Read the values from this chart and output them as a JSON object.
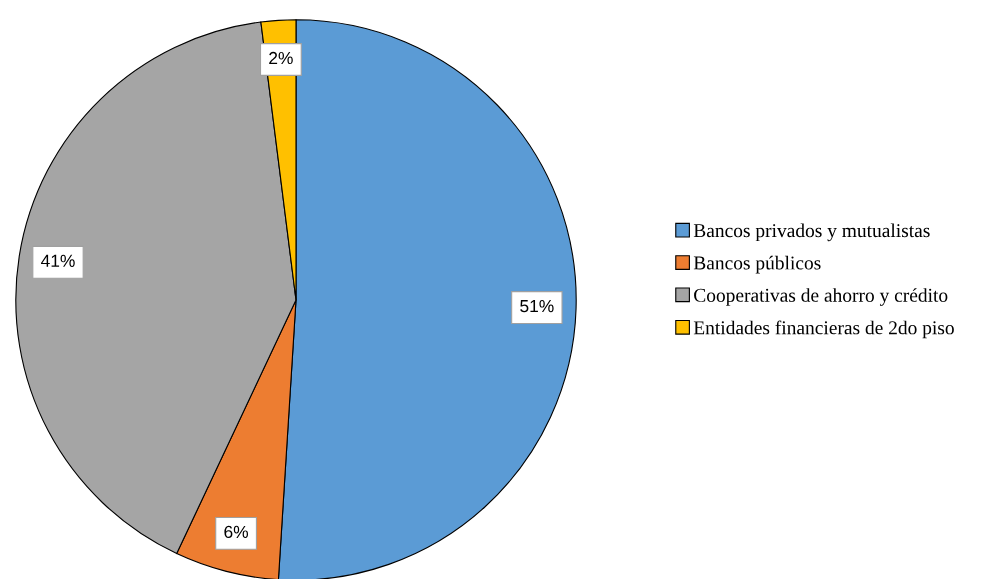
{
  "chart_data": {
    "type": "pie",
    "categories": [
      "Bancos privados y mutualistas",
      "Bancos públicos",
      "Cooperativas de ahorro y crédito",
      "Entidades financieras de 2do piso"
    ],
    "values": [
      51,
      6,
      41,
      2
    ],
    "colors": [
      "#5b9bd5",
      "#ed7d31",
      "#a5a5a5",
      "#ffc000"
    ],
    "value_labels": [
      "51%",
      "6%",
      "41%",
      "2%"
    ],
    "legend": "right"
  }
}
